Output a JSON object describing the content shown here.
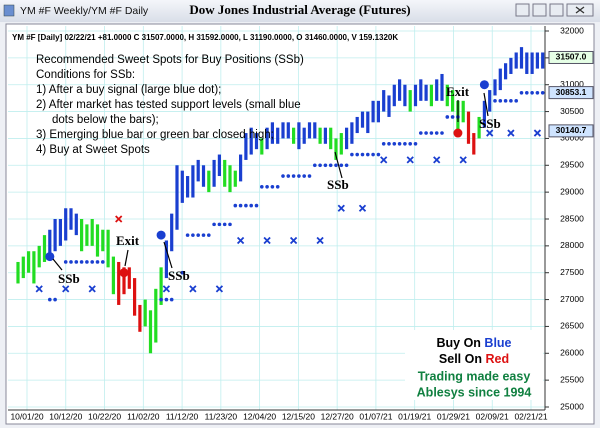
{
  "chart_data": {
    "type": "candlestick",
    "title": "Dow Jones Industrial Average (Futures)",
    "tab_title": "YM #F Weekly/YM #F Daily",
    "info_line": "YM #F [Daily] 02/22/21 +81.0000 C 31507.0000, H 31592.0000, L 31190.0000, O 31460.0000, V 159.1320K",
    "notes": [
      "Recommended Sweet Spots for Buy Positions (SSb)",
      "Conditions for SSb:",
      "1) After a buy signal (large blue dot);",
      "2) After market has tested support levels (small blue",
      "dots below the bars);",
      "3) Emerging blue bar or green bar closed high;",
      "4) Buy at Sweet Spots"
    ],
    "annotations": [
      "SSb",
      "Exit",
      "SSb",
      "SSb",
      "Exit",
      "SSb"
    ],
    "box": {
      "buy": "Buy On",
      "buy_color": "Blue",
      "sell": "Sell On",
      "sell_color": "Red",
      "line3": "Trading made easy",
      "line4": "Ablesys since 1994"
    },
    "ylim": [
      25000,
      32000
    ],
    "yticks": [
      25000,
      25500,
      26000,
      26500,
      27000,
      27500,
      28000,
      28500,
      29000,
      29500,
      30000,
      30500,
      31000,
      31500,
      32000
    ],
    "xlim": [
      -3,
      102
    ],
    "xticks": [
      {
        "value": 2,
        "label": "10/01/20"
      },
      {
        "value": 11,
        "label": "10/12/20"
      },
      {
        "value": 19,
        "label": "10/22/20"
      },
      {
        "value": 28,
        "label": "11/02/20"
      },
      {
        "value": 36,
        "label": "11/12/20"
      },
      {
        "value": 44,
        "label": "11/23/20"
      },
      {
        "value": 53,
        "label": "12/04/20"
      },
      {
        "value": 61,
        "label": "12/15/20"
      },
      {
        "value": 70,
        "label": "12/27/20"
      },
      {
        "value": 78,
        "label": "01/07/21"
      },
      {
        "value": 86,
        "label": "01/19/21"
      },
      {
        "value": 94,
        "label": "01/29/21"
      },
      {
        "value": 102,
        "label": "02/09/21"
      },
      {
        "value": 110,
        "label": "02/21/21"
      }
    ],
    "grid": true,
    "high": [
      27700,
      27800,
      27900,
      27900,
      28000,
      28200,
      28300,
      28500,
      28500,
      28700,
      28700,
      28600,
      28500,
      28400,
      28500,
      28400,
      28300,
      28300,
      27800,
      27700,
      27600,
      27600,
      27400,
      26900,
      27000,
      26800,
      27200,
      27600,
      28100,
      28600,
      29500,
      29400,
      29300,
      29500,
      29600,
      29500,
      29400,
      29600,
      29700,
      29600,
      29500,
      29400,
      29700,
      30100,
      30200,
      30100,
      30000,
      30200,
      30300,
      30200,
      30300,
      30300,
      30200,
      30300,
      30200,
      30300,
      30300,
      30200,
      30200,
      30200,
      30000,
      30100,
      30200,
      30300,
      30400,
      30500,
      30500,
      30700,
      30700,
      30900,
      30800,
      31000,
      31100,
      31000,
      30900,
      31000,
      31100,
      31000,
      31000,
      31100,
      31200,
      31000,
      30900,
      30700,
      30700,
      30500,
      30100,
      30400,
      30700,
      30900,
      31100,
      31300,
      31400,
      31500,
      31600,
      31700,
      31600,
      31600,
      31600,
      31600
    ],
    "low": [
      27300,
      27400,
      27500,
      27300,
      27600,
      27700,
      27800,
      27900,
      28000,
      28100,
      28300,
      28200,
      27900,
      28000,
      28000,
      27800,
      27900,
      27600,
      27100,
      26900,
      27100,
      27200,
      26700,
      26400,
      26500,
      26000,
      26200,
      26900,
      27400,
      27900,
      28300,
      28800,
      28900,
      28900,
      29200,
      29100,
      29000,
      29100,
      29300,
      29100,
      29000,
      29100,
      29200,
      29600,
      29700,
      29800,
      29700,
      29800,
      29900,
      29900,
      30000,
      30000,
      29900,
      29800,
      29900,
      30000,
      30000,
      29900,
      29900,
      29800,
      29600,
      29700,
      29800,
      29900,
      30100,
      30200,
      30100,
      30300,
      30300,
      30500,
      30400,
      30600,
      30700,
      30600,
      30500,
      30600,
      30700,
      30700,
      30600,
      30700,
      30700,
      30600,
      30500,
      30100,
      30300,
      29900,
      29700,
      30000,
      30200,
      30500,
      30800,
      30900,
      31100,
      31200,
      31300,
      31300,
      31200,
      31200,
      31300,
      31300
    ],
    "bar_colors": [
      "#22dd22",
      "#22dd22",
      "#22dd22",
      "#22dd22",
      "#22dd22",
      "#22dd22",
      "#1a3fd0",
      "#1a3fd0",
      "#1a3fd0",
      "#1a3fd0",
      "#1a3fd0",
      "#1a3fd0",
      "#22dd22",
      "#22dd22",
      "#22dd22",
      "#22dd22",
      "#22dd22",
      "#22dd22",
      "#22dd22",
      "#dd1111",
      "#dd1111",
      "#dd1111",
      "#dd1111",
      "#dd1111",
      "#22dd22",
      "#22dd22",
      "#22dd22",
      "#22dd22",
      "#1a3fd0",
      "#1a3fd0",
      "#1a3fd0",
      "#1a3fd0",
      "#1a3fd0",
      "#1a3fd0",
      "#1a3fd0",
      "#1a3fd0",
      "#22dd22",
      "#1a3fd0",
      "#1a3fd0",
      "#22dd22",
      "#22dd22",
      "#22dd22",
      "#1a3fd0",
      "#1a3fd0",
      "#1a3fd0",
      "#1a3fd0",
      "#22dd22",
      "#1a3fd0",
      "#1a3fd0",
      "#1a3fd0",
      "#1a3fd0",
      "#1a3fd0",
      "#22dd22",
      "#1a3fd0",
      "#1a3fd0",
      "#1a3fd0",
      "#1a3fd0",
      "#22dd22",
      "#1a3fd0",
      "#22dd22",
      "#22dd22",
      "#22dd22",
      "#1a3fd0",
      "#1a3fd0",
      "#1a3fd0",
      "#1a3fd0",
      "#1a3fd0",
      "#1a3fd0",
      "#1a3fd0",
      "#1a3fd0",
      "#1a3fd0",
      "#1a3fd0",
      "#1a3fd0",
      "#1a3fd0",
      "#22dd22",
      "#1a3fd0",
      "#1a3fd0",
      "#1a3fd0",
      "#22dd22",
      "#1a3fd0",
      "#1a3fd0",
      "#22dd22",
      "#22dd22",
      "#22dd22",
      "#22dd22",
      "#dd1111",
      "#dd1111",
      "#22dd22",
      "#1a3fd0",
      "#1a3fd0",
      "#1a3fd0",
      "#1a3fd0",
      "#1a3fd0",
      "#1a3fd0",
      "#1a3fd0",
      "#1a3fd0",
      "#1a3fd0",
      "#1a3fd0",
      "#1a3fd0",
      "#1a3fd0"
    ],
    "dots": {
      "color": "#1a3fd0",
      "x": [
        6,
        7,
        9,
        10,
        11,
        12,
        13,
        14,
        15,
        16,
        27,
        28,
        29,
        31,
        32,
        33,
        34,
        35,
        36,
        37,
        38,
        39,
        40,
        41,
        42,
        43,
        44,
        45,
        46,
        47,
        48,
        49,
        50,
        51,
        52,
        53,
        54,
        55,
        56,
        57,
        58,
        59,
        60,
        61,
        62,
        63,
        64,
        65,
        66,
        67,
        68,
        69,
        70,
        71,
        72,
        73,
        74,
        75,
        76,
        77,
        78,
        79,
        80,
        81,
        82,
        83,
        90,
        91,
        92,
        93,
        94,
        95,
        96,
        97,
        98,
        99
      ],
      "values": [
        27000,
        27000,
        27700,
        27700,
        27700,
        27700,
        27700,
        27700,
        27700,
        27700,
        27000,
        27000,
        27000,
        27500,
        28200,
        28200,
        28200,
        28200,
        28200,
        28400,
        28400,
        28400,
        28400,
        28750,
        28750,
        28750,
        28750,
        28750,
        29100,
        29100,
        29100,
        29100,
        29300,
        29300,
        29300,
        29300,
        29300,
        29300,
        29500,
        29500,
        29500,
        29500,
        29500,
        29500,
        29500,
        29700,
        29700,
        29700,
        29700,
        29700,
        29700,
        29900,
        29900,
        29900,
        29900,
        29900,
        29900,
        29900,
        30100,
        30100,
        30100,
        30100,
        30100,
        30400,
        30400,
        30400,
        30700,
        30700,
        30700,
        30700,
        30700,
        30850,
        30850,
        30850,
        30850,
        30850
      ]
    },
    "crosses": {
      "x": [
        4,
        9,
        14,
        19,
        28,
        33,
        38,
        42,
        47,
        52,
        57,
        61,
        65,
        69,
        74,
        79,
        84,
        89,
        93,
        98
      ],
      "values": [
        27200,
        27200,
        27200,
        28500,
        27200,
        27200,
        27200,
        28100,
        28100,
        28100,
        28100,
        28700,
        28700,
        29600,
        29600,
        29600,
        29600,
        30100,
        30100,
        30100
      ],
      "colors": [
        "#1a3fd0",
        "#1a3fd0",
        "#1a3fd0",
        "#dd1111",
        "#1a3fd0",
        "#1a3fd0",
        "#1a3fd0",
        "#1a3fd0",
        "#1a3fd0",
        "#1a3fd0",
        "#1a3fd0",
        "#1a3fd0",
        "#1a3fd0",
        "#1a3fd0",
        "#1a3fd0",
        "#1a3fd0",
        "#1a3fd0",
        "#1a3fd0",
        "#1a3fd0",
        "#1a3fd0"
      ]
    },
    "signals": {
      "x": [
        6,
        20,
        27,
        83,
        88
      ],
      "values": [
        27800,
        27500,
        28200,
        30100,
        31000
      ],
      "colors": [
        "#1a3fd0",
        "#dd1111",
        "#1a3fd0",
        "#dd1111",
        "#1a3fd0"
      ]
    },
    "price_markers": [
      {
        "value": 31507,
        "label": "31507.0",
        "color": "#e6ffe6"
      },
      {
        "value": 30853.1,
        "label": "30853.1",
        "color": "#cfe4ff"
      },
      {
        "value": 30140.7,
        "label": "30140.7",
        "color": "#cfe4ff"
      }
    ]
  }
}
